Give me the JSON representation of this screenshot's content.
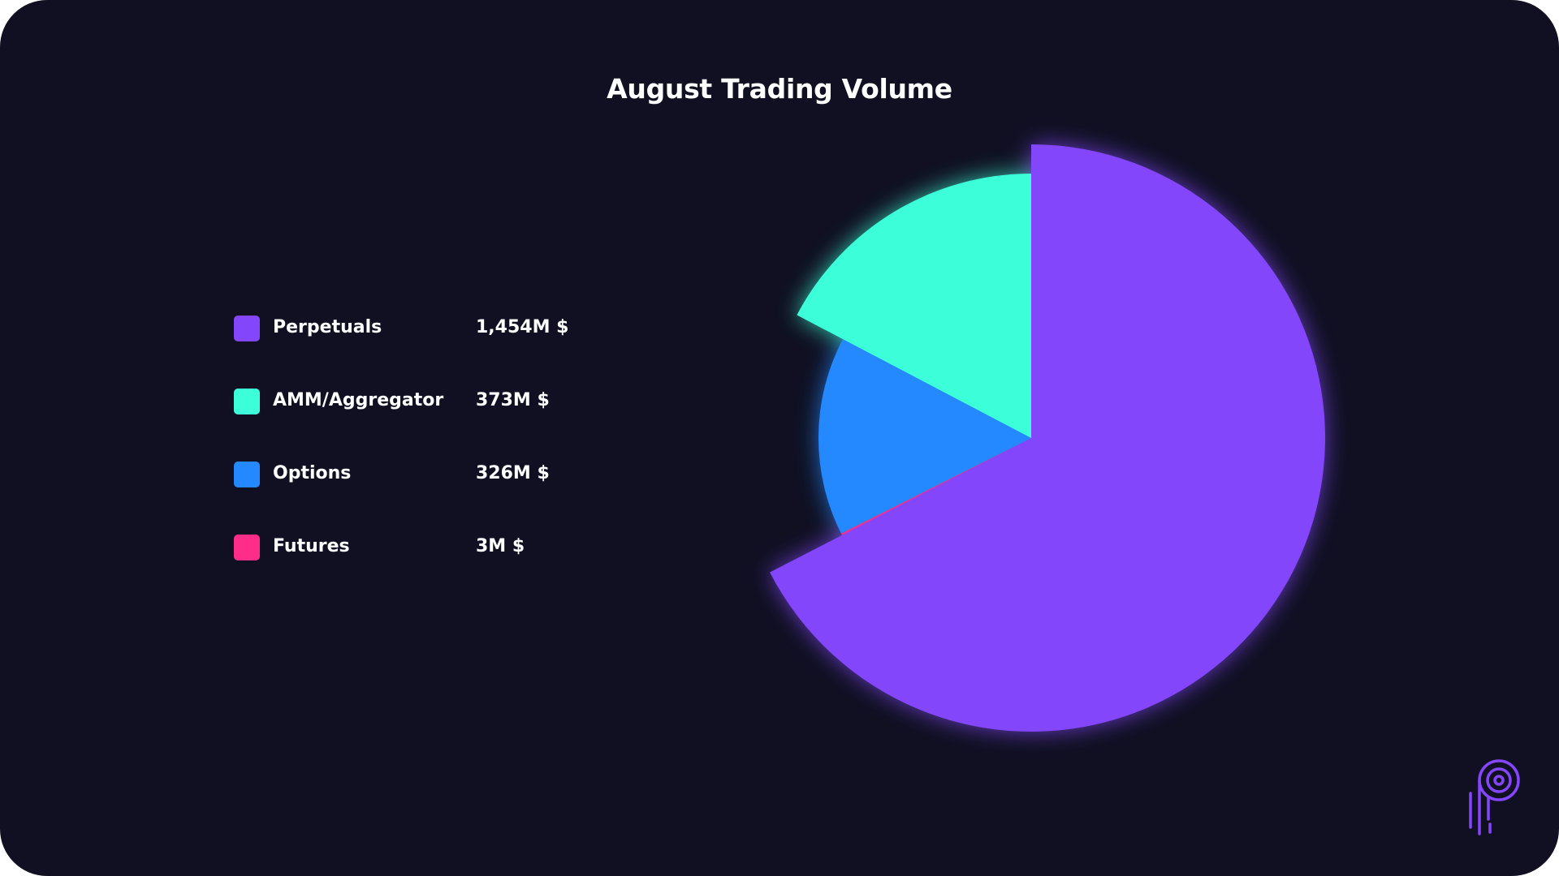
{
  "chart_data": {
    "type": "pie",
    "title": "August Trading Volume",
    "unit": "M $",
    "series": [
      {
        "name": "Perpetuals",
        "label": "1,454M $",
        "value": 1454,
        "color": "#8446FA"
      },
      {
        "name": "Futures",
        "label": "3M $",
        "value": 3,
        "color": "#FF2D8A"
      },
      {
        "name": "Options",
        "label": "326M $",
        "value": 326,
        "color": "#2489FF"
      },
      {
        "name": "AMM/Aggregator",
        "label": "373M $",
        "value": 373,
        "color": "#3CFFD9"
      }
    ],
    "legend_order": [
      "Perpetuals",
      "AMM/Aggregator",
      "Options",
      "Futures"
    ],
    "legend_placement": "left"
  },
  "colors": {
    "background": "#101022",
    "text": "#FFFFFF",
    "logo": "#8446FA"
  },
  "logo_icon": "brand-p-logo-icon"
}
